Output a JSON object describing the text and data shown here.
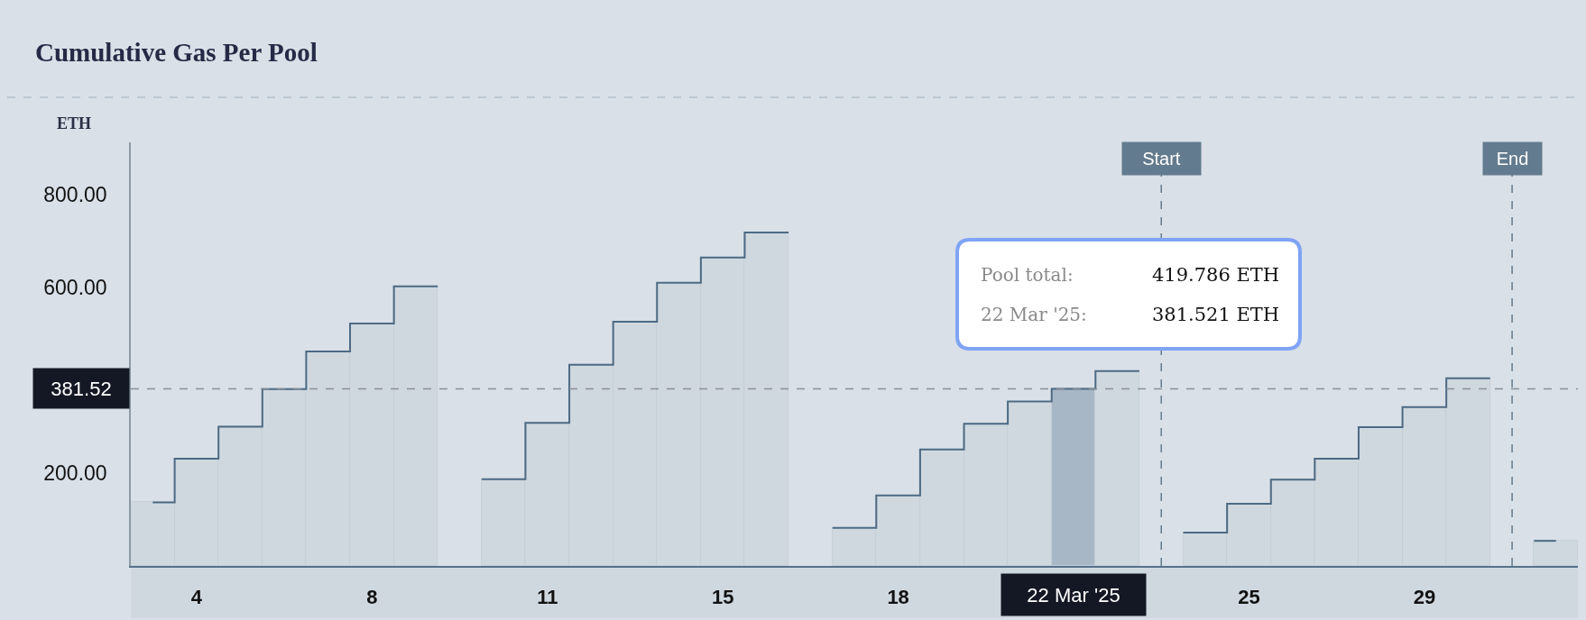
{
  "chart_data": {
    "type": "bar",
    "title": "Cumulative Gas Per Pool",
    "ylabel": "ETH",
    "categories": [
      null,
      "4",
      null,
      null,
      null,
      "8",
      null,
      null,
      null,
      "11",
      null,
      null,
      null,
      "15",
      null,
      null,
      null,
      "18",
      null,
      null,
      null,
      "22 Mar '25",
      null,
      null,
      null,
      "25",
      null,
      null,
      null,
      "29",
      null,
      null,
      null
    ],
    "series": [
      {
        "colors": [
          "#cfd8df",
          "#cfd8df",
          "#cfd8df",
          "#cfd8df",
          "#cfd8df",
          "#cfd8df",
          "#cfd8df",
          "#cfd8df",
          "#cfd8df",
          "#cfd8df",
          "#cfd8df",
          "#cfd8df",
          "#cfd8df",
          "#cfd8df",
          "#cfd8df",
          "#cfd8df",
          "#cfd8df",
          "#cfd8df",
          "#cfd8df",
          "#cfd8df",
          "#cfd8df",
          "#a8b7c6",
          "#cfd8df",
          "#cfd8df",
          "#cfd8df",
          "#cfd8df",
          "#cfd8df",
          "#cfd8df",
          "#cfd8df",
          "#cfd8df",
          "#cfd8df",
          "#cfd8df",
          "#cfd8df"
        ],
        "values": [
          137,
          231,
          300,
          381,
          462,
          522,
          602,
          null,
          187,
          308,
          433,
          526,
          610,
          664,
          718,
          null,
          82,
          152,
          251,
          306,
          354,
          381.521,
          419.786,
          null,
          72,
          134,
          186,
          231,
          299,
          342,
          404,
          null,
          54
        ]
      },
      {
        "type": "step",
        "color": "#4e6a83",
        "values": [
          137,
          231,
          300,
          381,
          462,
          522,
          602,
          null,
          187,
          308,
          433,
          526,
          610,
          664,
          718,
          null,
          82,
          152,
          251,
          306,
          354,
          381.521,
          419.786,
          null,
          72,
          134,
          186,
          231,
          299,
          342,
          404,
          null,
          54
        ]
      }
    ],
    "ylim": [
      0,
      912
    ],
    "yticks": [
      {
        "value": 200,
        "label": "200.00"
      },
      {
        "value": 600,
        "label": "600.00"
      },
      {
        "value": 800,
        "label": "800.00"
      }
    ],
    "ref_lines": [
      {
        "axis": "y",
        "value": 381.52,
        "label": "381.52",
        "color": "#8c9098",
        "line_style": "dashed"
      }
    ],
    "annotations": [
      "Pool total: 419.786 ETH",
      "22 Mar '25: 381.521 ETH",
      {
        "text": "Start"
      },
      {
        "text": "End"
      }
    ]
  }
}
